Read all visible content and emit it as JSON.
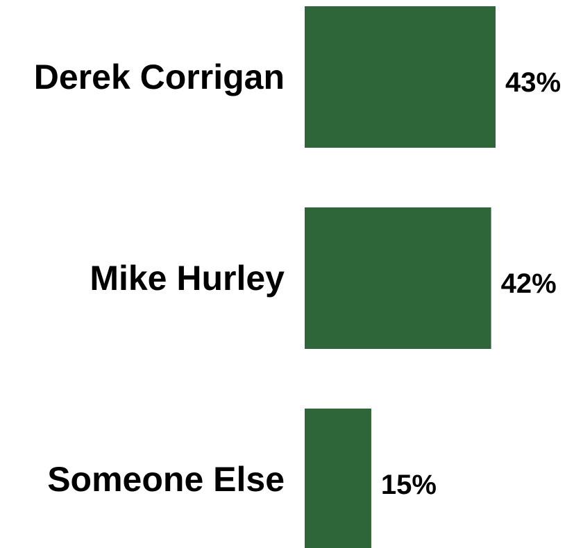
{
  "chart_data": {
    "type": "bar",
    "orientation": "horizontal",
    "categories": [
      "Derek Corrigan",
      "Mike Hurley",
      "Someone Else"
    ],
    "values": [
      43,
      42,
      15
    ],
    "value_labels": [
      "43%",
      "42%",
      "15%"
    ],
    "unit": "%",
    "xlim": [
      0,
      43
    ],
    "grid": false,
    "legend": "none",
    "bar_color": "#2e6639"
  }
}
